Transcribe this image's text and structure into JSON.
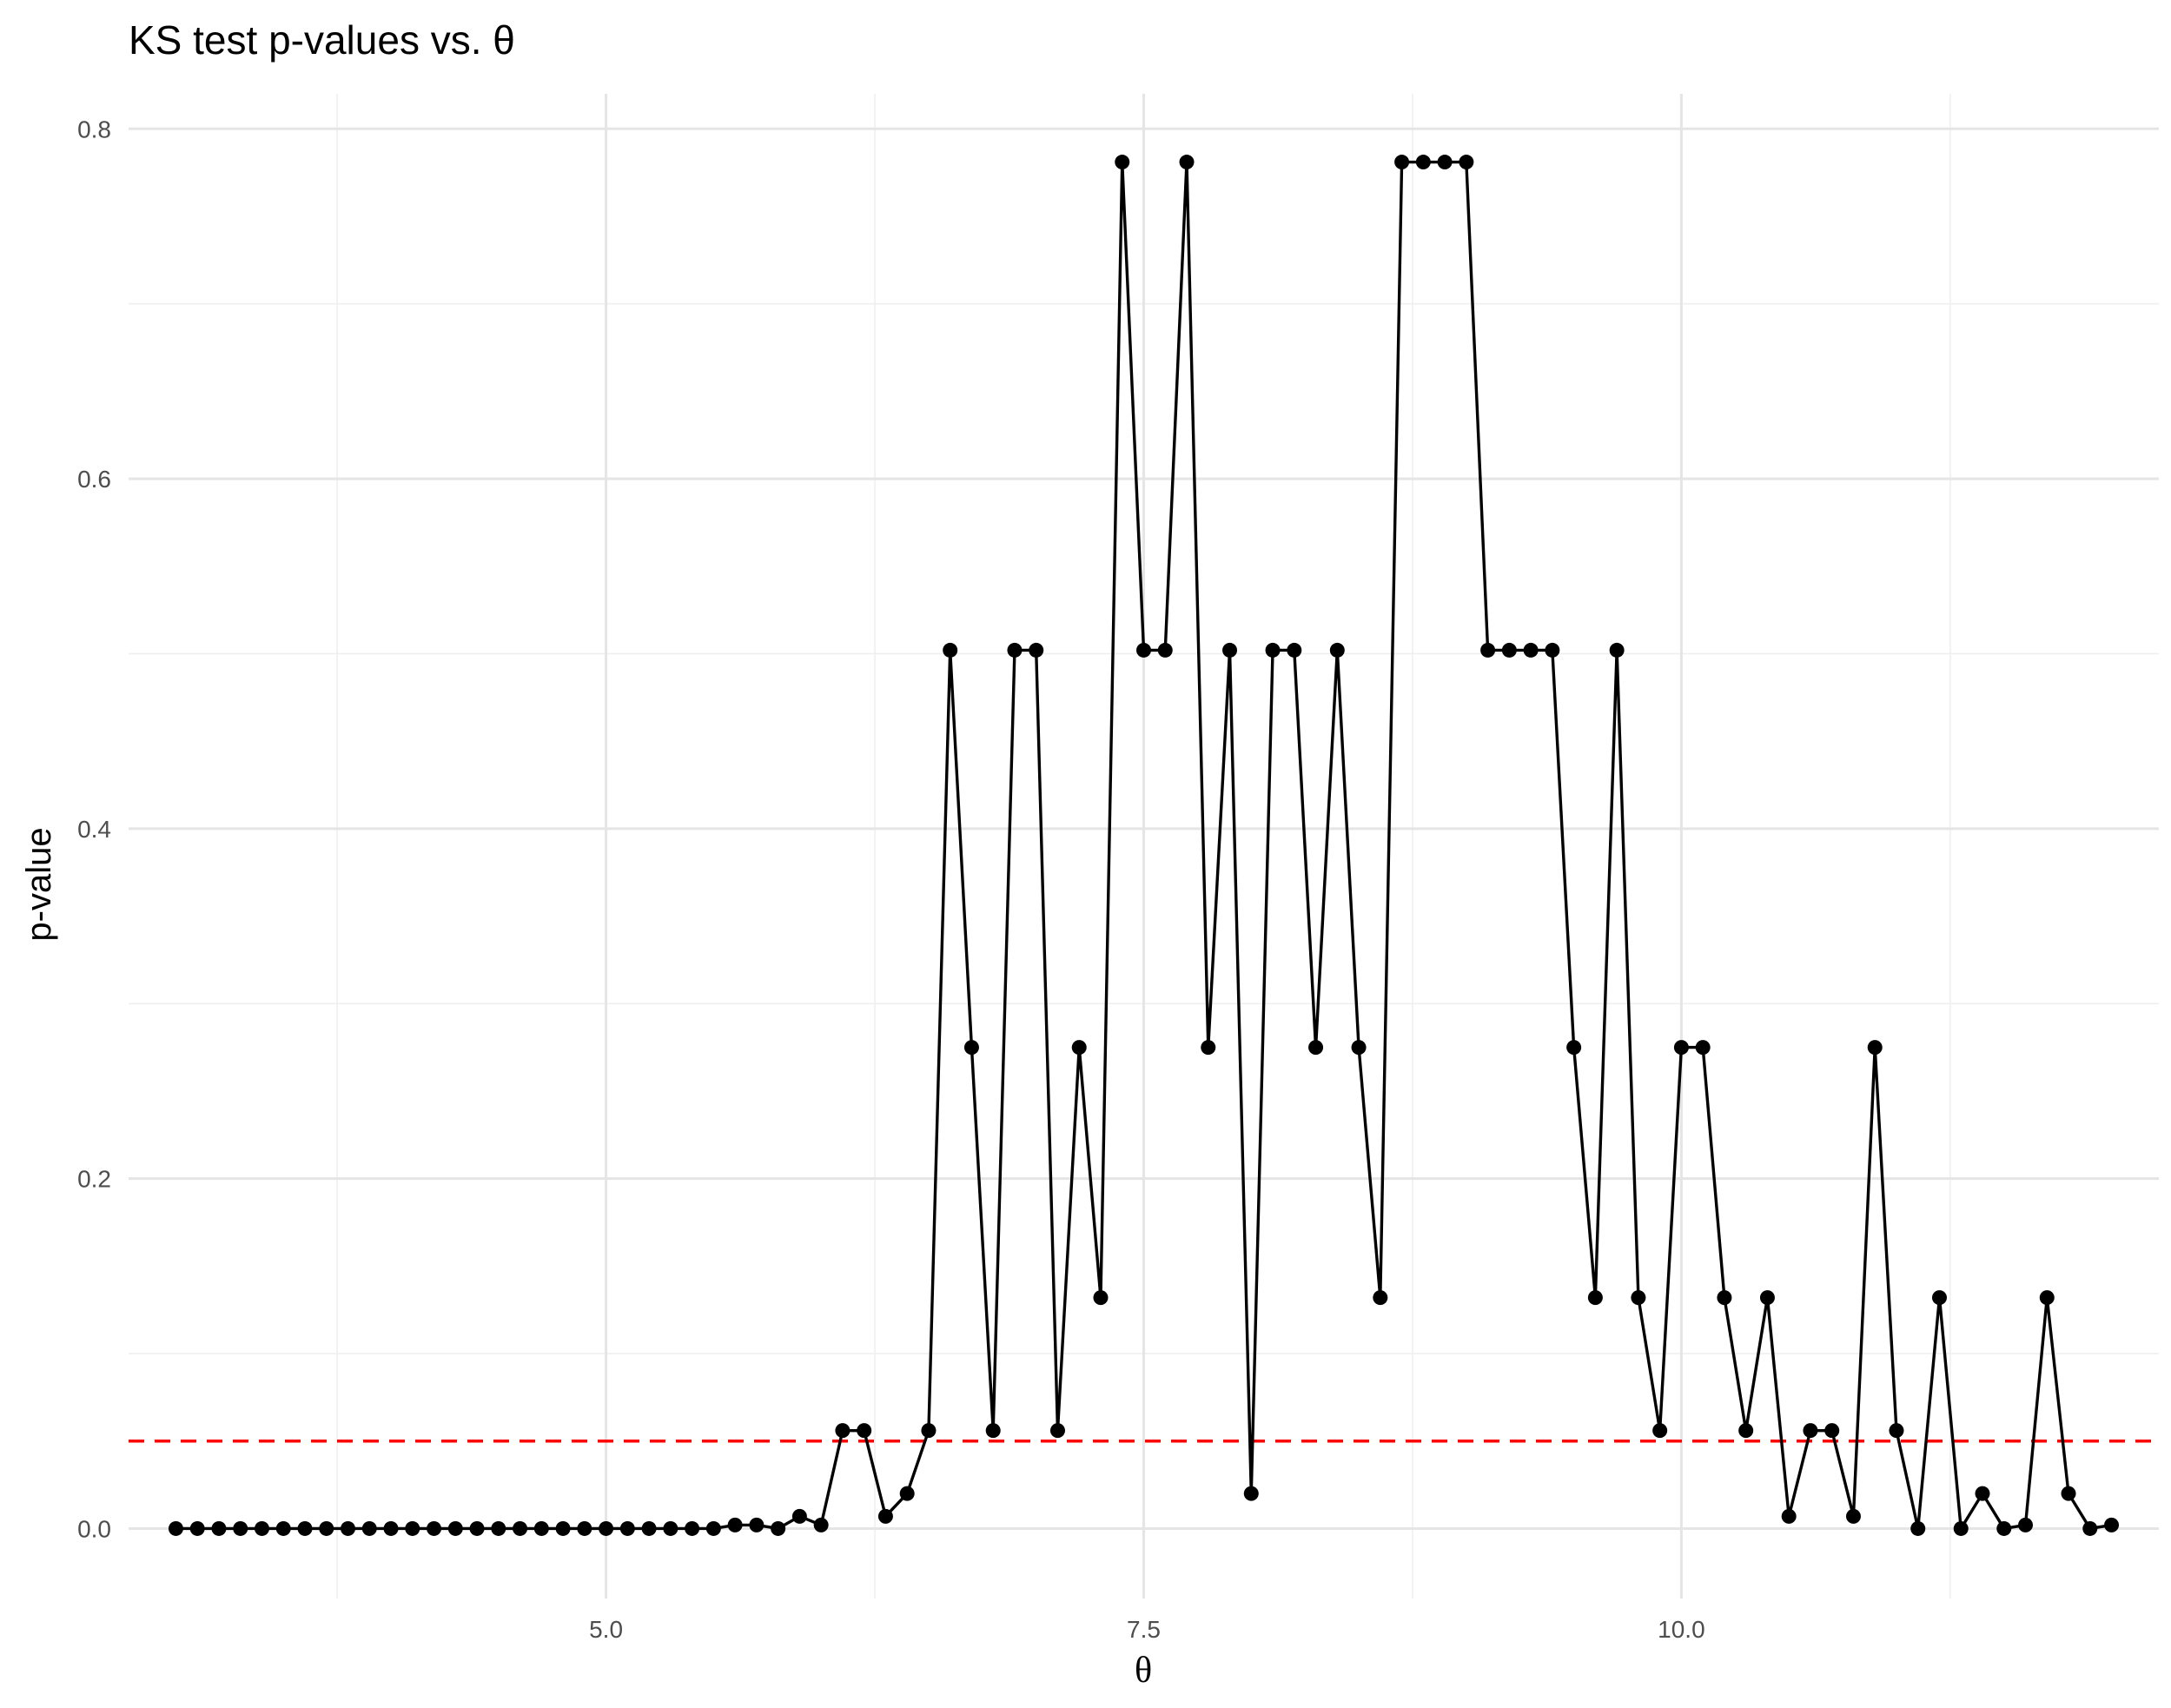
{
  "chart_data": {
    "type": "line",
    "title": "KS test p-values vs. θ",
    "xlabel": "θ",
    "ylabel": "p-value",
    "xlim": [
      2.78,
      12.22
    ],
    "ylim": [
      -0.04,
      0.82
    ],
    "x_ticks": [
      5.0,
      7.5,
      10.0
    ],
    "x_tick_labels": [
      "5.0",
      "7.5",
      "10.0"
    ],
    "x_minor_ticks": [
      3.75,
      6.25,
      8.75,
      11.25
    ],
    "y_ticks": [
      0.0,
      0.2,
      0.4,
      0.6,
      0.8
    ],
    "y_tick_labels": [
      "0.0",
      "0.2",
      "0.4",
      "0.6",
      "0.8"
    ],
    "y_minor_ticks": [
      0.1,
      0.3,
      0.5,
      0.7
    ],
    "grid": true,
    "reference_line": {
      "y": 0.05,
      "color": "#ff0000",
      "style": "dashed"
    },
    "series": [
      {
        "x": [
          3.0,
          3.1,
          3.2,
          3.3,
          3.4,
          3.5,
          3.6,
          3.7,
          3.8,
          3.9,
          4.0,
          4.1,
          4.2,
          4.3,
          4.4,
          4.5,
          4.6,
          4.7,
          4.8,
          4.9,
          5.0,
          5.1,
          5.2,
          5.3,
          5.4,
          5.5,
          5.6,
          5.7,
          5.8,
          5.9,
          6.0,
          6.1,
          6.2,
          6.3,
          6.4,
          6.5,
          6.6,
          6.7,
          6.8,
          6.9,
          7.0,
          7.1,
          7.2,
          7.3,
          7.4,
          7.5,
          7.6,
          7.7,
          7.8,
          7.9,
          8.0,
          8.1,
          8.2,
          8.3,
          8.4,
          8.5,
          8.6,
          8.7,
          8.8,
          8.9,
          9.0,
          9.1,
          9.2,
          9.3,
          9.4,
          9.5,
          9.6,
          9.7,
          9.8,
          9.9,
          10.0,
          10.1,
          10.2,
          10.3,
          10.4,
          10.5,
          10.6,
          10.7,
          10.8,
          10.9,
          11.0,
          11.1,
          11.2,
          11.3,
          11.4,
          11.5,
          11.6,
          11.7,
          11.8,
          11.9,
          12.0
        ],
        "y": [
          0.0,
          0.0,
          0.0,
          0.0,
          0.0,
          0.0,
          0.0,
          0.0,
          0.0,
          0.0,
          0.0,
          0.0,
          0.0,
          0.0,
          0.0,
          0.0,
          0.0,
          0.0,
          0.0,
          0.0,
          0.0,
          0.0,
          0.0,
          0.0,
          0.0,
          0.0,
          0.002,
          0.002,
          0.0,
          0.007,
          0.002,
          0.056,
          0.056,
          0.007,
          0.02,
          0.056,
          0.502,
          0.275,
          0.056,
          0.502,
          0.502,
          0.056,
          0.275,
          0.132,
          0.781,
          0.502,
          0.502,
          0.781,
          0.275,
          0.502,
          0.02,
          0.502,
          0.502,
          0.275,
          0.502,
          0.275,
          0.132,
          0.781,
          0.781,
          0.781,
          0.781,
          0.502,
          0.502,
          0.502,
          0.502,
          0.275,
          0.132,
          0.502,
          0.132,
          0.056,
          0.275,
          0.275,
          0.132,
          0.056,
          0.132,
          0.007,
          0.056,
          0.056,
          0.007,
          0.275,
          0.056,
          0.0,
          0.132,
          0.0,
          0.02,
          0.0,
          0.002,
          0.132,
          0.02,
          0.0,
          0.002
        ]
      }
    ]
  }
}
